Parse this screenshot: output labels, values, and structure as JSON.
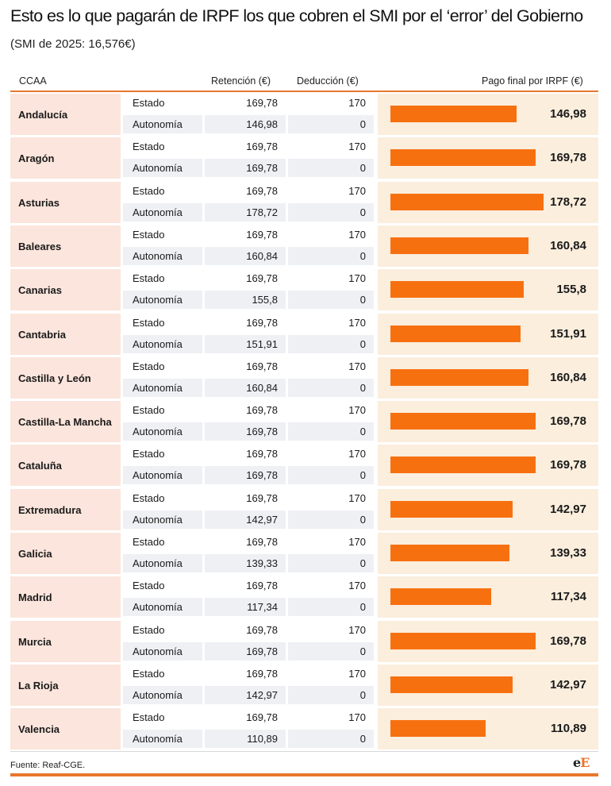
{
  "header": {
    "title": "Esto es lo que pagarán de IRPF los que cobren el SMI por el ‘error’ del Gobierno",
    "subtitle": "(SMI de 2025: 16,576€)"
  },
  "columns": {
    "ccaa": "CCAA",
    "retencion": "Retención (€)",
    "deduccion": "Deducción (€)",
    "pago": "Pago final por IRPF (€)"
  },
  "labels": {
    "estado": "Estado",
    "autonomia": "Autonomía"
  },
  "colors": {
    "bar": "#f77010",
    "accent": "#e8772e",
    "region_bg": "#fbe5dc",
    "bar_bg": "#fbeedd",
    "grey_row": "#eef0f4"
  },
  "chart_data": {
    "type": "bar",
    "orientation": "horizontal",
    "categories": [
      "Andalucía",
      "Aragón",
      "Asturias",
      "Baleares",
      "Canarias",
      "Cantabria",
      "Castilla y León",
      "Castilla-La Mancha",
      "Cataluña",
      "Extremadura",
      "Galicia",
      "Madrid",
      "Murcia",
      "La Rioja",
      "Valencia"
    ],
    "retencion_estado": [
      "169,78",
      "169,78",
      "169,78",
      "169,78",
      "169,78",
      "169,78",
      "169,78",
      "169,78",
      "169,78",
      "169,78",
      "169,78",
      "169,78",
      "169,78",
      "169,78",
      "169,78"
    ],
    "deduccion_estado": [
      "170",
      "170",
      "170",
      "170",
      "170",
      "170",
      "170",
      "170",
      "170",
      "170",
      "170",
      "170",
      "170",
      "170",
      "170"
    ],
    "retencion_autonomia": [
      "146,98",
      "169,78",
      "178,72",
      "160,84",
      "155,8",
      "151,91",
      "160,84",
      "169,78",
      "169,78",
      "142,97",
      "139,33",
      "117,34",
      "169,78",
      "142,97",
      "110,89"
    ],
    "deduccion_autonomia": [
      "0",
      "0",
      "0",
      "0",
      "0",
      "0",
      "0",
      "0",
      "0",
      "0",
      "0",
      "0",
      "0",
      "0",
      "0"
    ],
    "pago_labels": [
      "146,98",
      "169,78",
      "178,72",
      "160,84",
      "155,8",
      "151,91",
      "160,84",
      "169,78",
      "169,78",
      "142,97",
      "139,33",
      "117,34",
      "169,78",
      "142,97",
      "110,89"
    ],
    "values": [
      146.98,
      169.78,
      178.72,
      160.84,
      155.8,
      151.91,
      160.84,
      169.78,
      169.78,
      142.97,
      139.33,
      117.34,
      169.78,
      142.97,
      110.89
    ],
    "xlim": [
      0,
      178.72
    ]
  },
  "footer": {
    "source": "Fuente: Reaf-CGE.",
    "logo_e": "e",
    "logo_E": "E"
  }
}
